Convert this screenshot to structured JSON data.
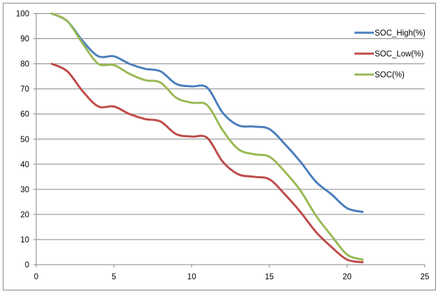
{
  "chart_data": {
    "type": "line",
    "title": "",
    "xlabel": "",
    "ylabel": "",
    "xlim": [
      0,
      25
    ],
    "ylim": [
      0,
      100
    ],
    "xticks": [
      0,
      5,
      10,
      15,
      20,
      25
    ],
    "yticks": [
      0,
      10,
      20,
      30,
      40,
      50,
      60,
      70,
      80,
      90,
      100
    ],
    "grid": "horizontal",
    "smooth": true,
    "legend_position": "right",
    "x": [
      1,
      2,
      3,
      4,
      5,
      6,
      7,
      8,
      9,
      10,
      11,
      12,
      13,
      14,
      15,
      16,
      17,
      18,
      19,
      20,
      21
    ],
    "series": [
      {
        "name": "SOC_High(%)",
        "color": "#4a7ebb",
        "values": [
          100,
          97,
          89,
          83,
          83,
          80,
          78,
          77,
          72,
          71,
          70.5,
          60.5,
          55.5,
          55,
          54,
          48,
          41,
          33,
          28,
          22.5,
          21
        ]
      },
      {
        "name": "SOC_Low(%)",
        "color": "#be4b48",
        "values": [
          80,
          77,
          69,
          63,
          63,
          60,
          58,
          57,
          52,
          51,
          50.5,
          41,
          36,
          35,
          34,
          28,
          21,
          13,
          7,
          2,
          1
        ]
      },
      {
        "name": "SOC(%)",
        "color": "#98b954",
        "values": [
          100,
          97,
          88,
          80,
          79.5,
          76,
          73.5,
          72.5,
          66.5,
          64.5,
          63.5,
          53.5,
          46,
          44,
          43,
          37,
          29.5,
          19.5,
          11.5,
          4,
          2
        ]
      }
    ]
  }
}
